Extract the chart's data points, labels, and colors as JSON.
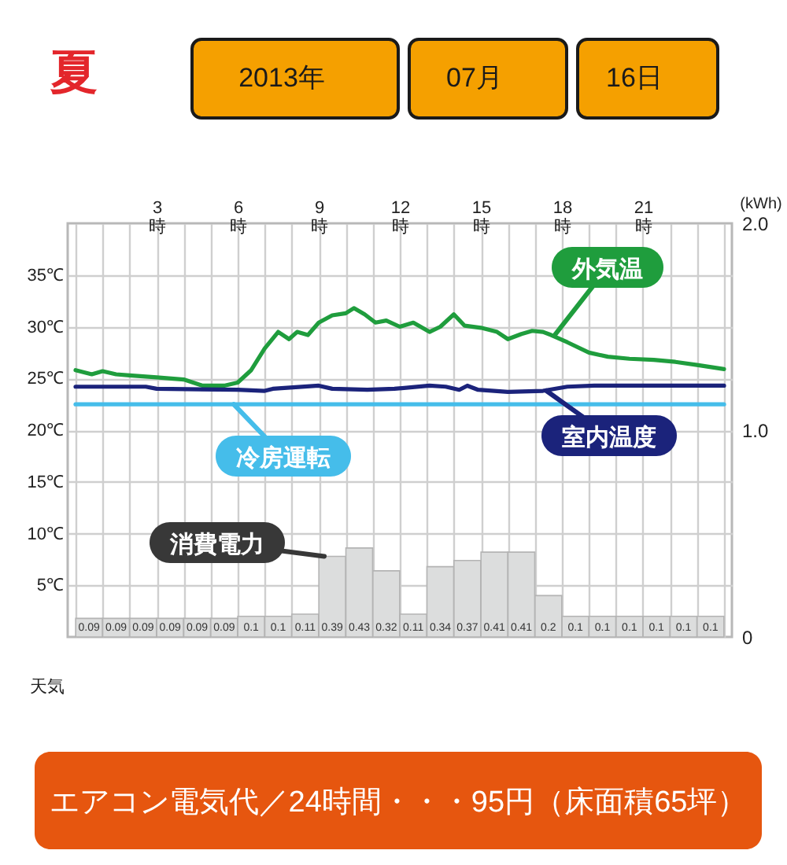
{
  "chart_data": {
    "type": "line",
    "annotations": [
      "夏",
      "2013年",
      "07月",
      "16日",
      "天気",
      "エアコン電気代／24時間・・・95円（床面積65坪）"
    ],
    "y2label": "(kWh)",
    "xlim": [
      0,
      24
    ],
    "xticks": [
      {
        "value": 0,
        "label": null
      },
      {
        "value": 1,
        "label": null
      },
      {
        "value": 2,
        "label": null
      },
      {
        "value": 3,
        "label": "3時"
      },
      {
        "value": 4,
        "label": null
      },
      {
        "value": 5,
        "label": null
      },
      {
        "value": 6,
        "label": "6時"
      },
      {
        "value": 7,
        "label": null
      },
      {
        "value": 8,
        "label": null
      },
      {
        "value": 9,
        "label": "9時"
      },
      {
        "value": 10,
        "label": null
      },
      {
        "value": 11,
        "label": null
      },
      {
        "value": 12,
        "label": "12時"
      },
      {
        "value": 13,
        "label": null
      },
      {
        "value": 14,
        "label": null
      },
      {
        "value": 15,
        "label": "15時"
      },
      {
        "value": 16,
        "label": null
      },
      {
        "value": 17,
        "label": null
      },
      {
        "value": 18,
        "label": "18時"
      },
      {
        "value": 19,
        "label": null
      },
      {
        "value": 20,
        "label": null
      },
      {
        "value": 21,
        "label": "21時"
      },
      {
        "value": 22,
        "label": null
      },
      {
        "value": 23,
        "label": null
      },
      {
        "value": 24,
        "label": null
      }
    ],
    "ylim": [
      0,
      40
    ],
    "yticks": [
      {
        "value": 5,
        "label": "5℃"
      },
      {
        "value": 10,
        "label": "10℃"
      },
      {
        "value": 15,
        "label": "15℃"
      },
      {
        "value": 20,
        "label": "20℃"
      },
      {
        "value": 25,
        "label": "25℃"
      },
      {
        "value": 30,
        "label": "30℃"
      },
      {
        "value": 35,
        "label": "35℃"
      }
    ],
    "y2lim": [
      0,
      2
    ],
    "y2ticks": [
      {
        "value": 0,
        "label": "0"
      },
      {
        "value": 1,
        "label": "1.0"
      },
      {
        "value": 2,
        "label": "2.0"
      }
    ],
    "grid": true,
    "series": [
      {
        "name": "外気温",
        "color": "#1f9d3d",
        "x": [
          0,
          0.6,
          1.0,
          1.5,
          2.0,
          3.0,
          4.0,
          4.7,
          5.5,
          6.0,
          6.5,
          7.0,
          7.5,
          7.9,
          8.2,
          8.6,
          9.0,
          9.5,
          10.0,
          10.3,
          10.7,
          11.1,
          11.5,
          12.0,
          12.5,
          13.1,
          13.5,
          14.0,
          14.4,
          15.0,
          15.6,
          16.0,
          16.5,
          16.9,
          17.3,
          17.6,
          18.2,
          19.0,
          19.7,
          20.5,
          21.4,
          22.2,
          23.0,
          24.0
        ],
        "values": [
          25.8,
          25.4,
          25.7,
          25.4,
          25.3,
          25.1,
          24.9,
          24.3,
          24.3,
          24.6,
          25.8,
          27.9,
          29.5,
          28.8,
          29.5,
          29.2,
          30.4,
          31.1,
          31.3,
          31.8,
          31.2,
          30.4,
          30.6,
          30.0,
          30.4,
          29.5,
          30.0,
          31.2,
          30.1,
          29.9,
          29.5,
          28.8,
          29.3,
          29.6,
          29.5,
          29.2,
          28.5,
          27.5,
          27.1,
          26.9,
          26.8,
          26.6,
          26.3,
          25.9
        ]
      },
      {
        "name": "室内温度",
        "color": "#1b237b",
        "x": [
          0,
          2.6,
          3.0,
          6.0,
          7.0,
          7.3,
          9.0,
          9.5,
          10.8,
          11.8,
          13.1,
          13.7,
          14.2,
          14.5,
          14.9,
          16.0,
          17.3,
          18.2,
          19.2,
          24.0
        ],
        "values": [
          24.2,
          24.2,
          24.0,
          23.9,
          23.8,
          24.0,
          24.3,
          24.0,
          23.9,
          24.0,
          24.3,
          24.2,
          23.9,
          24.3,
          23.9,
          23.7,
          23.8,
          24.2,
          24.3,
          24.3
        ]
      },
      {
        "name": "冷房運転",
        "color": "#45bdea",
        "x": [
          0,
          24
        ],
        "values": [
          22.5,
          22.5
        ]
      },
      {
        "name": "消費電力",
        "type": "bar",
        "axis": "y2",
        "color": "#dcdddd",
        "x": [
          0.5,
          1.5,
          2.5,
          3.5,
          4.5,
          5.5,
          6.5,
          7.5,
          8.5,
          9.5,
          10.5,
          11.5,
          12.5,
          13.5,
          14.5,
          15.5,
          16.5,
          17.5,
          18.5,
          19.5,
          20.5,
          21.5,
          22.5,
          23.5
        ],
        "values": [
          0.09,
          0.09,
          0.09,
          0.09,
          0.09,
          0.09,
          0.1,
          0.1,
          0.11,
          0.39,
          0.43,
          0.32,
          0.11,
          0.34,
          0.37,
          0.41,
          0.41,
          0.2,
          0.1,
          0.1,
          0.1,
          0.1,
          0.1,
          0.1
        ],
        "value_labels": [
          "0.09",
          "0.09",
          "0.09",
          "0.09",
          "0.09",
          "0.09",
          "0.1",
          "0.1",
          "0.11",
          "0.39",
          "0.43",
          "0.32",
          "0.11",
          "0.34",
          "0.37",
          "0.41",
          "0.41",
          "0.2",
          "0.1",
          "0.1",
          "0.1",
          "0.1",
          "0.1",
          "0.1"
        ]
      }
    ]
  }
}
